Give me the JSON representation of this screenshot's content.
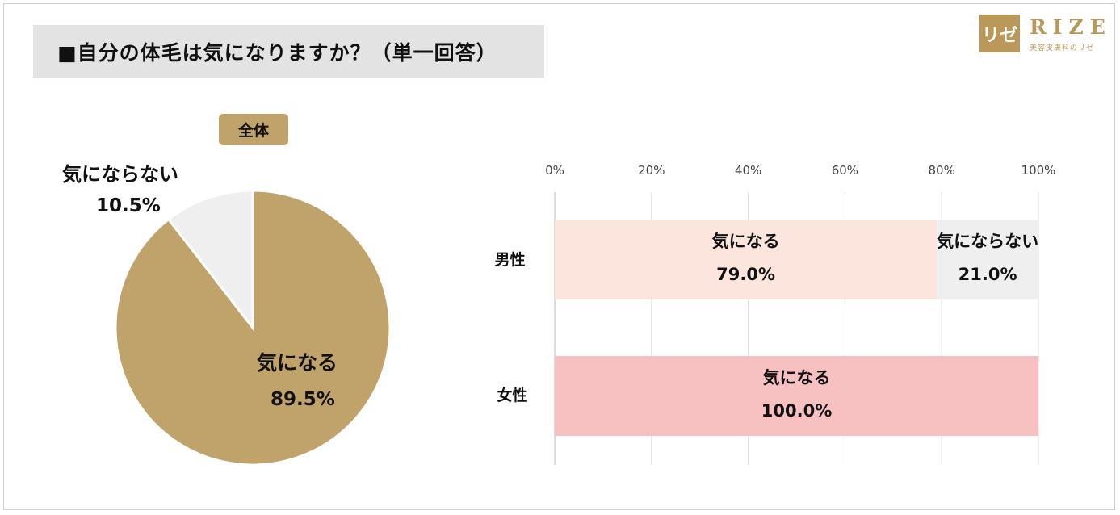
{
  "title": "■自分の体毛は気になりますか？（単一回答）",
  "logo": {
    "mark": "リゼ",
    "name": "RIZE",
    "sub": "美容皮膚科のリゼ"
  },
  "colors": {
    "brand": "#b9985a",
    "pie_main": "#c0a36b",
    "pie_minor": "#f0efef",
    "male_main": "#fbe5dc",
    "female_main": "#f6c1c0",
    "minor": "#f0efef"
  },
  "chart_data": [
    {
      "type": "pie",
      "badge": "全体",
      "slices": [
        {
          "label": "気になる",
          "value": 89.5,
          "value_label": "89.5%"
        },
        {
          "label": "気にならない",
          "value": 10.5,
          "value_label": "10.5%"
        }
      ]
    },
    {
      "type": "bar",
      "orientation": "horizontal",
      "stacked": true,
      "xlim": [
        0,
        100
      ],
      "ticks": [
        "0%",
        "20%",
        "40%",
        "60%",
        "80%",
        "100%"
      ],
      "grid": true,
      "categories": [
        "男性",
        "女性"
      ],
      "series": [
        {
          "name": "気になる",
          "values": [
            79.0,
            100.0
          ],
          "value_labels": [
            "79.0%",
            "100.0%"
          ]
        },
        {
          "name": "気にならない",
          "values": [
            21.0,
            0.0
          ],
          "value_labels": [
            "21.0%",
            ""
          ]
        }
      ]
    }
  ]
}
